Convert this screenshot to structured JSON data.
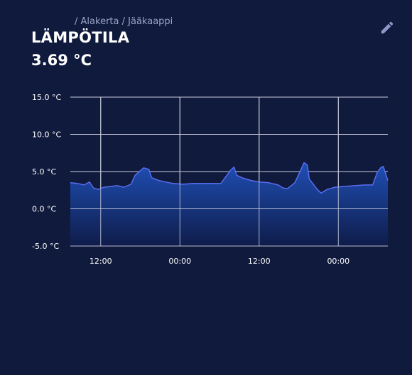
{
  "header": {
    "breadcrumb": {
      "separator": "/",
      "items": [
        "Alakerta",
        "Jääkaappi"
      ]
    },
    "title": "LÄMPÖTILA",
    "current_value": "3.69 °C"
  },
  "toolbar": {
    "edit_icon": "pencil-icon"
  },
  "colors": {
    "background": "#101a3d",
    "line": "#5a6cf0",
    "fill_top": "#1f4fb5",
    "fill_bottom": "#0f1c4a",
    "grid": "#c8ccdc"
  },
  "chart_data": {
    "type": "area",
    "title": "",
    "xlabel": "",
    "ylabel": "",
    "ylim": [
      -5,
      15
    ],
    "yticks": [
      {
        "value": 15,
        "label": "15.0 °C"
      },
      {
        "value": 10,
        "label": "10.0 °C"
      },
      {
        "value": 5,
        "label": "5.0 °C"
      },
      {
        "value": 0,
        "label": "0.0 °C"
      },
      {
        "value": -5,
        "label": "-5.0 °C"
      }
    ],
    "xlim": [
      7.4,
      55.5
    ],
    "xticks": [
      {
        "value": 12,
        "label": "12:00"
      },
      {
        "value": 24,
        "label": "00:00"
      },
      {
        "value": 36,
        "label": "12:00"
      },
      {
        "value": 48,
        "label": "00:00"
      }
    ],
    "grid": true,
    "legend": "none",
    "series": [
      {
        "x": [
          7.4,
          8.5,
          9.5,
          10.3,
          10.9,
          11.6,
          12.5,
          13.5,
          14.5,
          15.5,
          16.6,
          17.2,
          18.5,
          19.3,
          19.7,
          20.2,
          20.8,
          21.8,
          23.0,
          24.5,
          26.0,
          27.5,
          29.0,
          30.2,
          31.2,
          31.7,
          32.2,
          32.6,
          33.6,
          34.8,
          36.0,
          37.5,
          38.9,
          39.6,
          40.3,
          41.4,
          42.2,
          42.8,
          43.3,
          43.6,
          44.8,
          45.4,
          46.3,
          47.5,
          49.0,
          50.5,
          52.0,
          53.2,
          53.9,
          54.4,
          54.8,
          55.5
        ],
        "y": [
          3.5,
          3.4,
          3.2,
          3.6,
          2.8,
          2.6,
          2.9,
          3.0,
          3.1,
          2.9,
          3.3,
          4.5,
          5.5,
          5.3,
          4.2,
          4.0,
          3.8,
          3.6,
          3.4,
          3.3,
          3.4,
          3.4,
          3.4,
          3.4,
          4.6,
          5.2,
          5.6,
          4.5,
          4.1,
          3.8,
          3.6,
          3.5,
          3.2,
          2.8,
          2.7,
          3.5,
          5.0,
          6.2,
          5.9,
          4.0,
          2.6,
          2.1,
          2.6,
          2.9,
          3.0,
          3.1,
          3.2,
          3.2,
          4.9,
          5.5,
          5.7,
          3.8
        ]
      }
    ]
  }
}
